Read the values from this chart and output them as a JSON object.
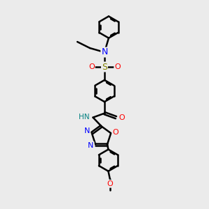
{
  "bg_color": "#ebebeb",
  "bond_color": "#000000",
  "N_color": "#0000ff",
  "O_color": "#ff0000",
  "S_color": "#808000",
  "NH_color": "#008080",
  "line_width": 1.8,
  "dbo": 0.055,
  "fig_width": 3.0,
  "fig_height": 3.0,
  "xlim": [
    2.5,
    7.5
  ],
  "ylim": [
    0.5,
    10.5
  ]
}
